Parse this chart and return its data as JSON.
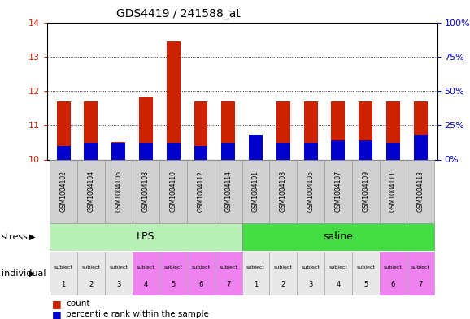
{
  "title": "GDS4419 / 241588_at",
  "samples": [
    "GSM1004102",
    "GSM1004104",
    "GSM1004106",
    "GSM1004108",
    "GSM1004110",
    "GSM1004112",
    "GSM1004114",
    "GSM1004101",
    "GSM1004103",
    "GSM1004105",
    "GSM1004107",
    "GSM1004109",
    "GSM1004111",
    "GSM1004113"
  ],
  "red_values": [
    11.7,
    11.7,
    10.5,
    11.8,
    13.45,
    11.7,
    11.7,
    10.1,
    11.7,
    11.7,
    11.7,
    11.7,
    11.7,
    11.7
  ],
  "blue_pct": [
    10,
    12,
    12,
    12,
    12,
    10,
    12,
    18,
    12,
    12,
    14,
    14,
    12,
    18
  ],
  "ylim_left": [
    10,
    14
  ],
  "ylim_right": [
    0,
    100
  ],
  "yticks_left": [
    10,
    11,
    12,
    13,
    14
  ],
  "yticks_right": [
    0,
    25,
    50,
    75,
    100
  ],
  "ytick_right_labels": [
    "0%",
    "25%",
    "50%",
    "75%",
    "100%"
  ],
  "lps_color": "#b8f0b8",
  "saline_color": "#44dd44",
  "subj_colors_lps": [
    "#e8e8e8",
    "#e8e8e8",
    "#e8e8e8",
    "#ee82ee",
    "#ee82ee",
    "#ee82ee",
    "#ee82ee"
  ],
  "subj_colors_saline": [
    "#e8e8e8",
    "#e8e8e8",
    "#e8e8e8",
    "#e8e8e8",
    "#e8e8e8",
    "#ee82ee",
    "#ee82ee"
  ],
  "bar_width": 0.5,
  "red_color": "#cc2200",
  "blue_color": "#0000cc",
  "grid_color": "black",
  "left_tick_color": "#cc2200",
  "right_tick_color": "#0000cc",
  "sample_bg": "#d0d0d0"
}
